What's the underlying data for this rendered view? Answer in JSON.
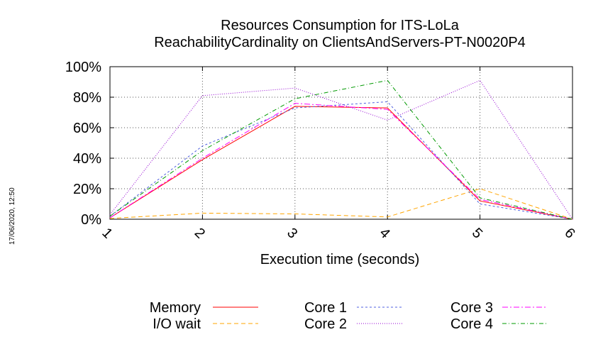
{
  "chart_data": {
    "type": "line",
    "title": "Resources Consumption for ITS-LoLa",
    "subtitle": "ReachabilityCardinality on ClientsAndServers-PT-N0020P4",
    "xlabel": "Execution time (seconds)",
    "ylabel": "",
    "x": [
      1,
      2,
      3,
      4,
      5,
      6
    ],
    "xlim": [
      1,
      6
    ],
    "ylim": [
      0,
      100
    ],
    "x_ticks": [
      "1",
      "2",
      "3",
      "4",
      "5",
      "6"
    ],
    "y_ticks": [
      "0%",
      "20%",
      "40%",
      "60%",
      "80%",
      "100%"
    ],
    "grid": true,
    "legend_position": "bottom",
    "series": [
      {
        "name": "Memory",
        "color": "#ff0000",
        "dash": "",
        "values": [
          1,
          39,
          74,
          73,
          12,
          0
        ]
      },
      {
        "name": "I/O wait",
        "color": "#ffa500",
        "dash": "6,4",
        "values": [
          0.5,
          4,
          3.5,
          1.5,
          20,
          0
        ]
      },
      {
        "name": "Core 1",
        "color": "#5060e0",
        "dash": "3,3",
        "values": [
          2,
          48,
          73,
          77,
          10,
          0
        ]
      },
      {
        "name": "Core 2",
        "color": "#9400d3",
        "dash": "1,2",
        "values": [
          3,
          81,
          86,
          65,
          91,
          0
        ]
      },
      {
        "name": "Core 3",
        "color": "#ff00ff",
        "dash": "8,3,2,3",
        "values": [
          1,
          40,
          76,
          72,
          13,
          0
        ]
      },
      {
        "name": "Core 4",
        "color": "#009900",
        "dash": "6,3,1,3",
        "values": [
          2,
          45,
          79,
          91,
          14,
          0
        ]
      }
    ]
  },
  "timestamp": "17/06/2020, 12:50"
}
